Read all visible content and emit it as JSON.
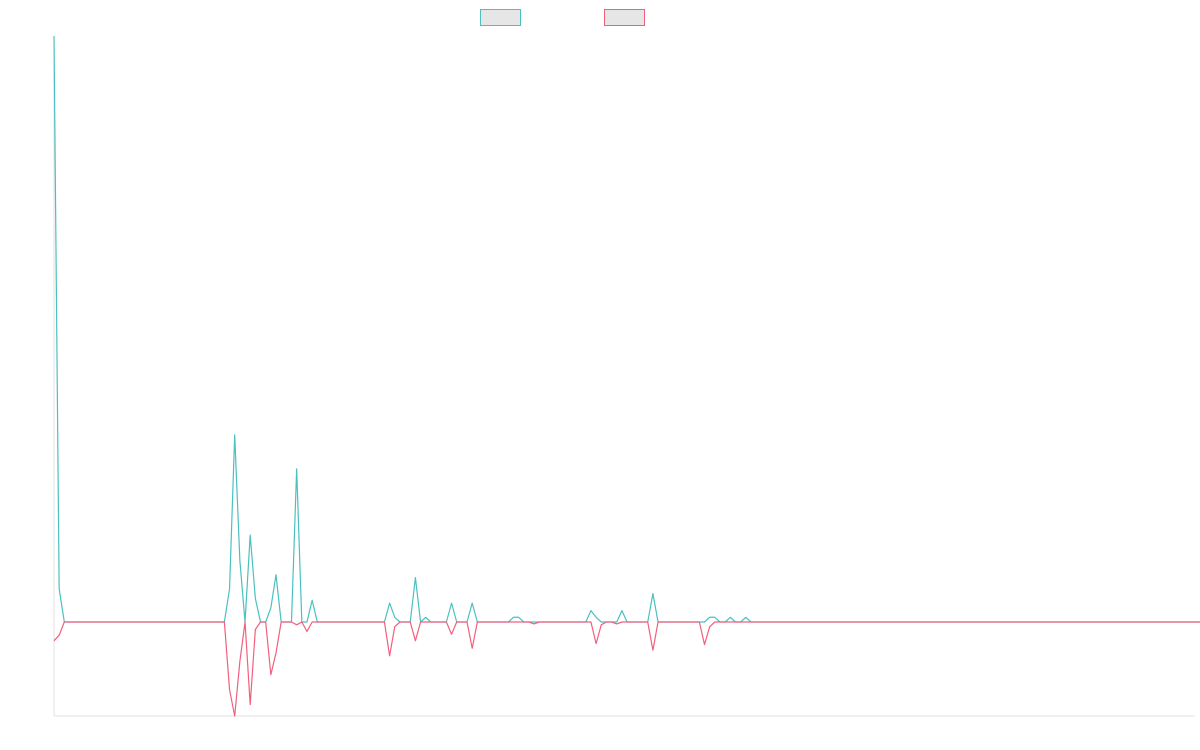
{
  "chart_data": {
    "type": "line",
    "title": "",
    "xlabel": "",
    "ylabel": "",
    "x_count": 222,
    "ylim": [
      -100,
      620
    ],
    "grid": false,
    "legend_position": "top-center",
    "series": [
      {
        "color": "#4bc0c0",
        "fill": "#e6e6e6",
        "values": [
          620,
          35,
          0,
          0,
          0,
          0,
          0,
          0,
          0,
          0,
          0,
          0,
          0,
          0,
          0,
          0,
          0,
          0,
          0,
          0,
          0,
          0,
          0,
          0,
          0,
          0,
          0,
          0,
          0,
          0,
          0,
          0,
          0,
          0,
          35,
          198,
          65,
          0,
          92,
          25,
          0,
          0,
          15,
          50,
          0,
          0,
          0,
          162,
          0,
          0,
          23,
          0,
          0,
          0,
          0,
          0,
          0,
          0,
          0,
          0,
          0,
          0,
          0,
          0,
          0,
          20,
          5,
          0,
          0,
          0,
          47,
          0,
          5,
          0,
          0,
          0,
          0,
          20,
          0,
          0,
          0,
          20,
          0,
          0,
          0,
          0,
          0,
          0,
          0,
          5,
          5,
          0,
          0,
          0,
          0,
          0,
          0,
          0,
          0,
          0,
          0,
          0,
          0,
          0,
          12,
          5,
          0,
          0,
          0,
          0,
          12,
          0,
          0,
          0,
          0,
          0,
          30,
          0,
          0,
          0,
          0,
          0,
          0,
          0,
          0,
          0,
          0,
          5,
          5,
          0,
          0,
          5,
          0,
          0,
          5,
          0,
          0,
          0,
          0,
          0,
          0,
          0,
          0,
          0,
          0,
          0,
          0,
          0,
          0,
          0,
          0,
          0,
          0,
          0,
          0,
          0,
          0,
          0,
          0,
          0,
          0,
          0,
          0,
          0,
          0,
          0,
          0,
          0,
          0,
          0,
          0,
          0,
          0,
          0,
          0,
          0,
          0,
          0,
          0,
          0,
          0,
          0,
          0,
          0,
          0,
          0,
          0,
          0,
          0,
          0,
          0,
          0,
          0,
          0,
          0,
          0,
          0,
          0,
          0,
          0,
          0,
          0,
          0,
          0,
          0,
          0,
          0,
          0,
          0,
          0,
          0,
          0,
          0,
          0,
          0,
          0,
          0,
          0,
          0,
          0,
          0,
          0,
          0,
          0,
          0,
          0,
          0,
          0,
          0,
          0,
          0,
          0,
          0,
          0,
          0,
          0,
          0,
          10,
          0,
          0,
          0,
          0,
          0,
          0,
          0,
          0,
          0,
          0,
          0,
          0,
          0
        ]
      },
      {
        "color": "#f25f7f",
        "fill": "#e6e6e6",
        "values": [
          -20,
          -14,
          0,
          0,
          0,
          0,
          0,
          0,
          0,
          0,
          0,
          0,
          0,
          0,
          0,
          0,
          0,
          0,
          0,
          0,
          0,
          0,
          0,
          0,
          0,
          0,
          0,
          0,
          0,
          0,
          0,
          0,
          0,
          0,
          -72,
          -100,
          -42,
          0,
          -88,
          -8,
          0,
          0,
          -56,
          -33,
          0,
          0,
          0,
          -3,
          0,
          -10,
          0,
          0,
          0,
          0,
          0,
          0,
          0,
          0,
          0,
          0,
          0,
          0,
          0,
          0,
          0,
          -36,
          -5,
          0,
          0,
          0,
          -20,
          0,
          0,
          0,
          0,
          0,
          0,
          -13,
          0,
          0,
          0,
          -28,
          0,
          0,
          0,
          0,
          0,
          0,
          0,
          0,
          0,
          0,
          0,
          -2,
          0,
          0,
          0,
          0,
          0,
          0,
          0,
          0,
          0,
          0,
          0,
          -23,
          -3,
          0,
          0,
          -2,
          0,
          0,
          0,
          0,
          0,
          0,
          -30,
          0,
          0,
          0,
          0,
          0,
          0,
          0,
          0,
          0,
          -24,
          -5,
          0,
          0,
          0,
          0,
          0,
          0,
          0,
          0,
          0,
          0,
          0,
          0,
          0,
          0,
          0,
          0,
          0,
          0,
          0,
          0,
          0,
          0,
          0,
          0,
          0,
          0,
          0,
          0,
          0,
          0,
          0,
          0,
          0,
          0,
          0,
          0,
          0,
          0,
          0,
          0,
          0,
          0,
          0,
          0,
          0,
          0,
          0,
          0,
          0,
          0,
          0,
          0,
          0,
          0,
          0,
          0,
          0,
          0,
          0,
          0,
          0,
          0,
          0,
          0,
          0,
          0,
          0,
          0,
          0,
          0,
          0,
          0,
          0,
          0,
          0,
          0,
          0,
          0,
          0,
          0,
          0,
          0,
          0,
          0,
          0,
          0,
          0,
          0,
          0,
          0,
          0,
          0,
          0,
          0,
          0,
          0,
          0,
          0,
          0,
          0,
          -5,
          0,
          0,
          0,
          0,
          0,
          0,
          0,
          0,
          0,
          0,
          0,
          0,
          0
        ]
      }
    ]
  }
}
